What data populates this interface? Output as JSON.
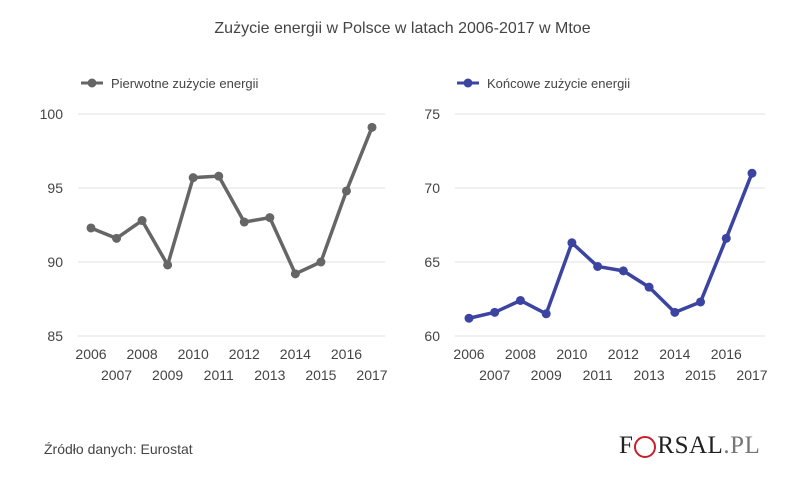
{
  "title": "Zużycie energii w Polsce w latach 2006-2017 w Mtoe",
  "source": "Źródło danych: Eurostat",
  "logo": {
    "text_left": "F",
    "text_right": "RSAL",
    "suffix": ".PL"
  },
  "colors": {
    "series_left": "#666666",
    "series_right": "#3b44a0",
    "grid": "#e2e2e2",
    "text": "#444444"
  },
  "chart_data": [
    {
      "type": "line",
      "series": [
        {
          "name": "Pierwotne zużycie energii",
          "values": [
            92.3,
            91.6,
            92.8,
            89.8,
            95.7,
            95.8,
            92.7,
            93.0,
            89.2,
            90.0,
            94.8,
            99.1
          ]
        }
      ],
      "x": [
        "2006",
        "2007",
        "2008",
        "2009",
        "2010",
        "2011",
        "2012",
        "2013",
        "2014",
        "2015",
        "2016",
        "2017"
      ],
      "ylim": [
        85,
        100
      ],
      "yticks": [
        "85",
        "90",
        "95",
        "100"
      ],
      "legend": "top-left",
      "grid": true
    },
    {
      "type": "line",
      "series": [
        {
          "name": "Końcowe zużycie energii",
          "values": [
            61.2,
            61.6,
            62.4,
            61.5,
            66.3,
            64.7,
            64.4,
            63.3,
            61.6,
            62.3,
            66.6,
            71.0
          ]
        }
      ],
      "x": [
        "2006",
        "2007",
        "2008",
        "2009",
        "2010",
        "2011",
        "2012",
        "2013",
        "2014",
        "2015",
        "2016",
        "2017"
      ],
      "ylim": [
        60,
        75
      ],
      "yticks": [
        "60",
        "65",
        "70",
        "75"
      ],
      "legend": "top-left",
      "grid": true
    }
  ]
}
